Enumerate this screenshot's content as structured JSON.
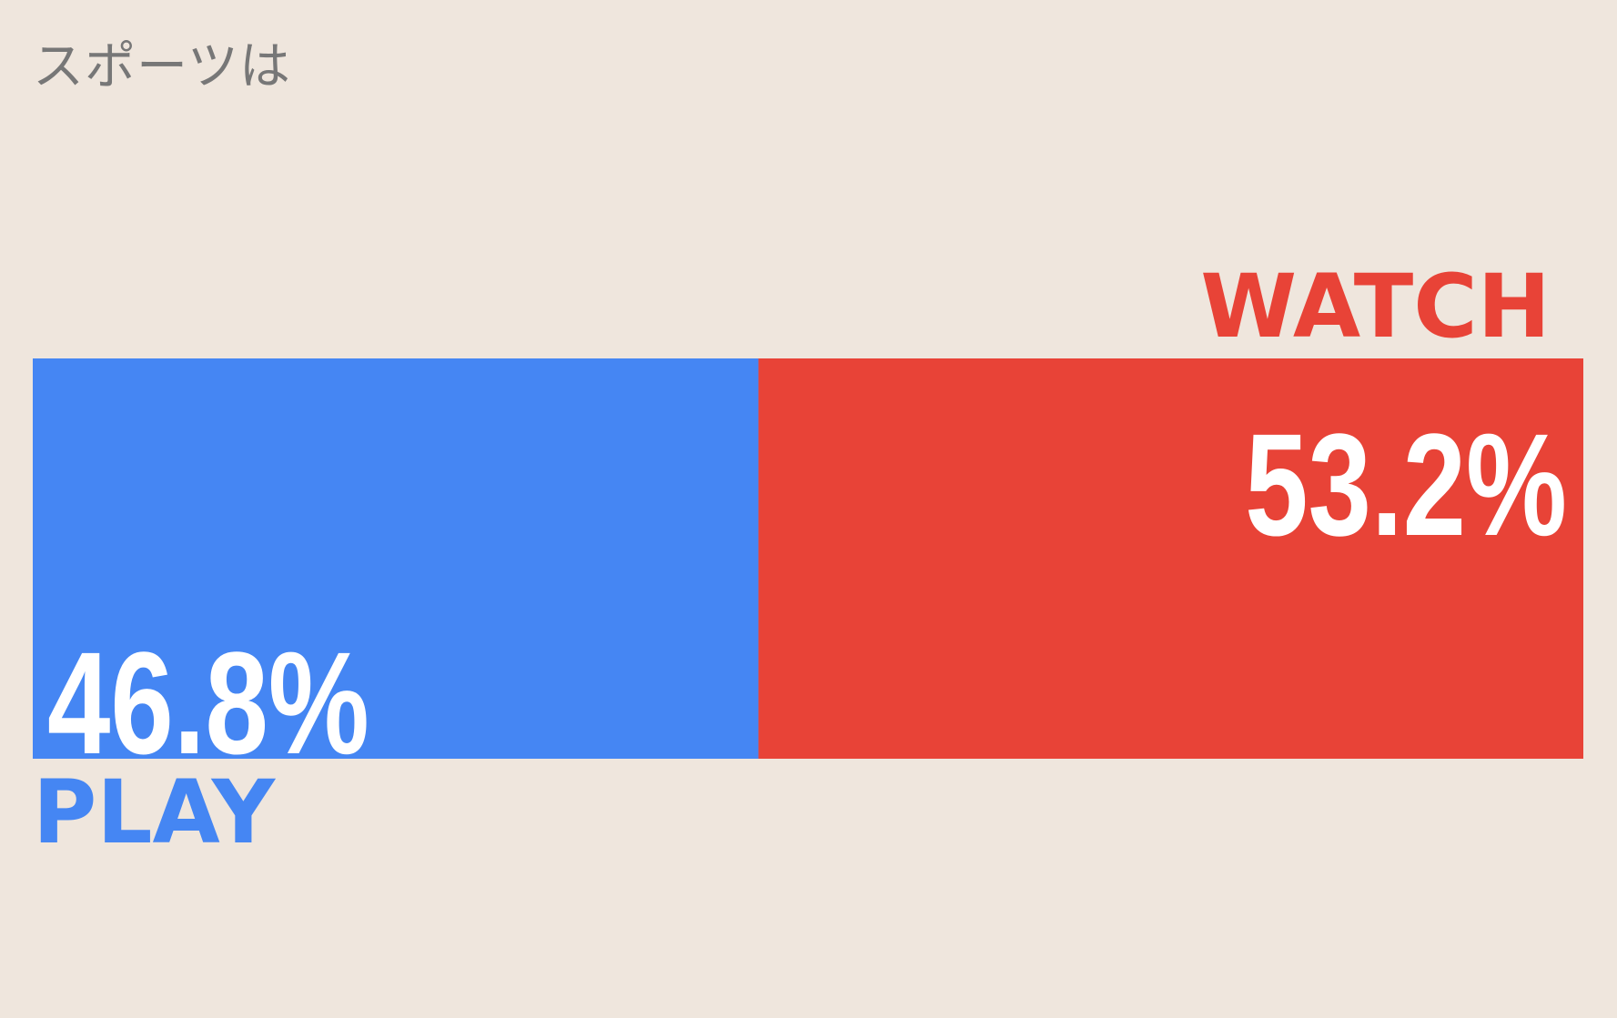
{
  "chart_data": {
    "type": "bar",
    "orientation": "horizontal-stacked",
    "title": "スポーツは",
    "categories": [
      "PLAY",
      "WATCH"
    ],
    "values": [
      46.8,
      53.2
    ],
    "value_labels": [
      "46.8%",
      "53.2%"
    ],
    "colors": [
      "#4586f3",
      "#e84337"
    ],
    "xlabel": "",
    "ylabel": "",
    "xlim": [
      0,
      100
    ]
  }
}
